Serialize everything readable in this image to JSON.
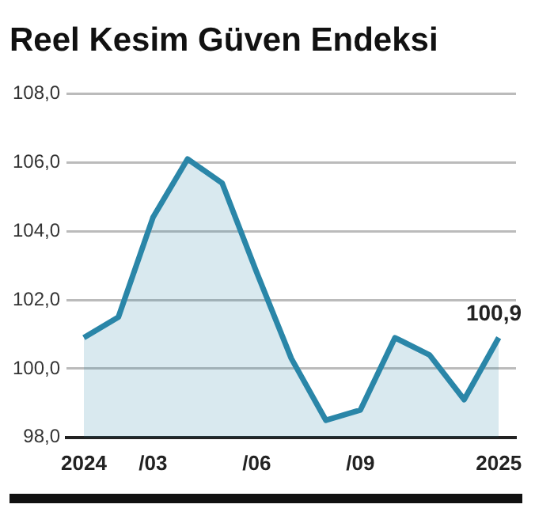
{
  "chart_data": {
    "type": "area",
    "title": "Reel Kesim Güven Endeksi",
    "categories": [
      "2024",
      null,
      "/03",
      null,
      null,
      "/06",
      null,
      null,
      "/09",
      null,
      null,
      null,
      "2025"
    ],
    "series": [
      {
        "color": "#2a86a8",
        "values": [
          100.9,
          101.5,
          104.4,
          106.1,
          105.4,
          102.8,
          100.3,
          98.5,
          98.8,
          100.9,
          100.4,
          99.1,
          100.9
        ],
        "value_labels": [
          null,
          null,
          null,
          null,
          null,
          null,
          null,
          null,
          null,
          null,
          null,
          null,
          "100,9"
        ]
      }
    ],
    "ylim": [
      98,
      108
    ],
    "yticks": [
      {
        "value": 98,
        "label": "98,0"
      },
      {
        "value": 100,
        "label": "100,0"
      },
      {
        "value": 102,
        "label": "102,0"
      },
      {
        "value": 104,
        "label": "104,0"
      },
      {
        "value": 106,
        "label": "106,0"
      },
      {
        "value": 108,
        "label": "108,0"
      }
    ],
    "grid": "y",
    "legend": false,
    "marker": "none",
    "line_style": "solid"
  }
}
